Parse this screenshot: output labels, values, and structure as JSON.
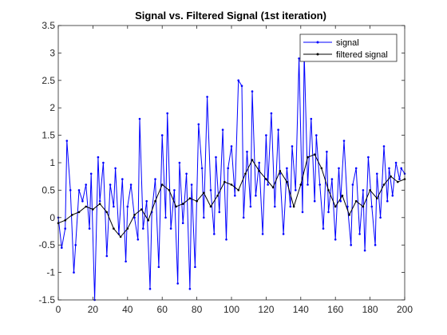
{
  "chart_data": {
    "type": "line",
    "title": "Signal vs. Filtered Signal (1st iteration)",
    "xlabel": "",
    "ylabel": "",
    "xlim": [
      0,
      200
    ],
    "ylim": [
      -1.5,
      3.5
    ],
    "xticks": [
      0,
      20,
      40,
      60,
      80,
      100,
      120,
      140,
      160,
      180,
      200
    ],
    "yticks": [
      -1.5,
      -1,
      -0.5,
      0,
      0.5,
      1,
      1.5,
      2,
      2.5,
      3,
      3.5
    ],
    "xtick_labels": [
      "0",
      "20",
      "40",
      "60",
      "80",
      "100",
      "120",
      "140",
      "160",
      "180",
      "200"
    ],
    "ytick_labels": [
      "-1.5",
      "-1",
      "-0.5",
      "0",
      "0.5",
      "1",
      "1.5",
      "2",
      "2.5",
      "3",
      "3.5"
    ],
    "grid": false,
    "legend_position": "top-right",
    "series": [
      {
        "name": "signal",
        "color": "#0000ff",
        "marker": "dot",
        "x": [
          0,
          2,
          4,
          5,
          7,
          9,
          10,
          12,
          14,
          16,
          18,
          19,
          21,
          23,
          24,
          26,
          28,
          30,
          32,
          33,
          35,
          37,
          39,
          40,
          42,
          44,
          46,
          47,
          49,
          51,
          53,
          54,
          56,
          58,
          60,
          62,
          63,
          65,
          67,
          69,
          70,
          72,
          74,
          76,
          77,
          79,
          81,
          83,
          84,
          86,
          88,
          90,
          91,
          93,
          95,
          97,
          98,
          100,
          102,
          104,
          106,
          107,
          109,
          111,
          112,
          114,
          116,
          118,
          120,
          121,
          123,
          125,
          127,
          128,
          130,
          132,
          134,
          135,
          137,
          139,
          141,
          142,
          144,
          146,
          148,
          149,
          151,
          153,
          155,
          156,
          158,
          160,
          162,
          163,
          165,
          167,
          169,
          170,
          172,
          174,
          176,
          177,
          179,
          181,
          183,
          184,
          186,
          188,
          190,
          191,
          193,
          195,
          197,
          198,
          200
        ],
        "y": [
          0.0,
          -0.55,
          -0.2,
          1.4,
          0.5,
          -1.0,
          -0.5,
          0.5,
          0.3,
          0.6,
          -0.2,
          0.8,
          -1.5,
          1.1,
          0.3,
          1.0,
          -0.7,
          0.6,
          0.2,
          0.9,
          -0.3,
          0.7,
          -0.8,
          0.2,
          0.6,
          0.0,
          -0.4,
          1.8,
          -0.2,
          0.3,
          -1.3,
          0.1,
          0.7,
          -0.9,
          1.5,
          0.0,
          1.9,
          -0.2,
          0.5,
          -1.2,
          1.0,
          -0.1,
          0.8,
          -1.3,
          0.6,
          -0.9,
          1.7,
          0.9,
          0.0,
          2.2,
          0.5,
          -0.3,
          1.1,
          0.1,
          1.6,
          -0.4,
          0.9,
          1.3,
          0.4,
          2.5,
          2.4,
          0.0,
          1.2,
          0.2,
          2.3,
          0.4,
          1.0,
          -0.3,
          1.5,
          0.6,
          1.9,
          0.2,
          1.6,
          0.8,
          -0.3,
          0.9,
          0.2,
          1.3,
          0.5,
          2.9,
          0.1,
          3.0,
          0.6,
          1.8,
          0.3,
          1.5,
          0.6,
          -0.2,
          1.2,
          0.1,
          0.7,
          -0.4,
          0.9,
          0.3,
          1.4,
          0.2,
          -0.5,
          0.6,
          0.9,
          -0.3,
          0.5,
          -0.6,
          1.1,
          0.2,
          -0.5,
          0.8,
          0.0,
          1.3,
          0.3,
          0.9,
          0.4,
          1.0,
          0.7,
          0.9,
          0.8
        ]
      },
      {
        "name": "filtered signal",
        "color": "#000000",
        "marker": "dot",
        "x": [
          0,
          4,
          8,
          12,
          16,
          20,
          24,
          28,
          32,
          36,
          40,
          44,
          48,
          52,
          56,
          60,
          64,
          68,
          72,
          76,
          80,
          84,
          88,
          92,
          96,
          100,
          104,
          108,
          112,
          116,
          120,
          124,
          128,
          132,
          136,
          140,
          144,
          148,
          152,
          156,
          160,
          164,
          168,
          172,
          176,
          180,
          184,
          188,
          192,
          196,
          200
        ],
        "y": [
          -0.1,
          -0.05,
          0.05,
          0.1,
          0.2,
          0.15,
          0.25,
          0.1,
          -0.2,
          -0.35,
          -0.2,
          0.05,
          0.15,
          -0.05,
          0.3,
          0.6,
          0.5,
          0.2,
          0.25,
          0.35,
          0.3,
          0.45,
          0.2,
          0.4,
          0.65,
          0.6,
          0.5,
          0.8,
          1.05,
          0.85,
          0.7,
          0.55,
          0.85,
          0.65,
          0.2,
          0.6,
          1.1,
          1.15,
          0.9,
          0.5,
          0.2,
          0.4,
          0.05,
          0.3,
          0.2,
          0.5,
          0.35,
          0.6,
          0.75,
          0.65,
          0.7
        ]
      }
    ]
  }
}
